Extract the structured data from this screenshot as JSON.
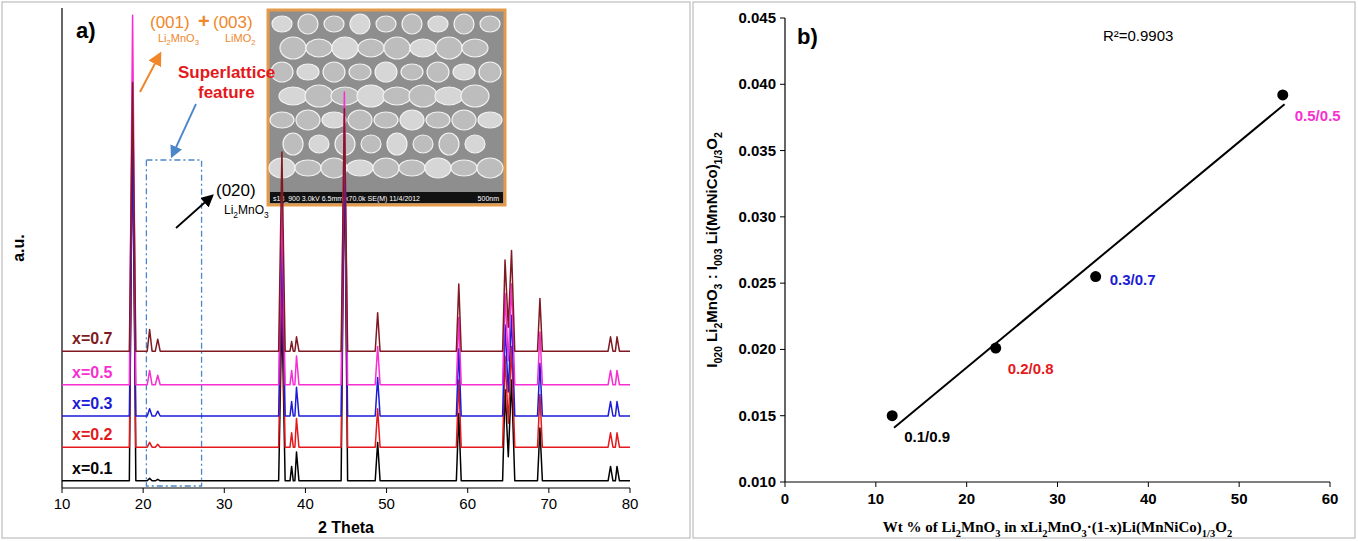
{
  "chart_data": [
    {
      "type": "line",
      "panel_label": "a)",
      "x_label": "2 Theta",
      "y_label": "a.u.",
      "xlim": [
        10,
        80
      ],
      "xticks": [
        10,
        20,
        30,
        40,
        50,
        60,
        70,
        80
      ],
      "ylim": [
        0,
        100
      ],
      "tick_labels": "x",
      "x": [
        10,
        18.3,
        18.7,
        19.1,
        20.5,
        20.8,
        21.1,
        21.5,
        21.8,
        22.1,
        36.7,
        37.1,
        37.5,
        38.1,
        38.3,
        38.5,
        38.7,
        38.9,
        39.2,
        44.4,
        44.8,
        45.2,
        48.6,
        48.9,
        49.2,
        58.6,
        58.9,
        59.2,
        64.3,
        64.6,
        65.0,
        65.4,
        65.8,
        68.6,
        68.9,
        69.2,
        77.3,
        77.6,
        77.9,
        78.2,
        78.4,
        78.7,
        80
      ],
      "series": [
        {
          "name": "x=0.1",
          "color": "#000000",
          "values": [
            1.5,
            1.5,
            81,
            1.5,
            1.5,
            2,
            1.5,
            1.5,
            1.8,
            1.5,
            1.5,
            37,
            1.5,
            1.5,
            4.5,
            1.5,
            1.5,
            7.5,
            1.5,
            1.5,
            70,
            1.5,
            1.5,
            9.5,
            1.5,
            1.5,
            15.5,
            1.5,
            1.5,
            20.5,
            6.5,
            22.5,
            1.5,
            1.5,
            12.5,
            1.5,
            1.5,
            4.5,
            1.5,
            1.5,
            4.5,
            1.5,
            1.5
          ]
        },
        {
          "name": "x=0.2",
          "color": "#e3191c",
          "values": [
            8.5,
            8.5,
            75,
            8.5,
            8.5,
            9.5,
            8.5,
            8.5,
            9.1,
            8.5,
            8.5,
            45,
            8.5,
            8.5,
            11.5,
            8.5,
            8.5,
            14.5,
            8.5,
            8.5,
            75,
            8.5,
            8.5,
            16.5,
            8.5,
            8.5,
            22.5,
            8.5,
            8.5,
            27.5,
            13.5,
            29.5,
            8.5,
            8.5,
            19.5,
            8.5,
            8.5,
            11.5,
            8.5,
            8.5,
            11.5,
            8.5,
            8.5
          ]
        },
        {
          "name": "x=0.3",
          "color": "#1c1cd6",
          "values": [
            15,
            15,
            72,
            15,
            15,
            16.5,
            15,
            15,
            16,
            15,
            15,
            52,
            15,
            15,
            18,
            15,
            15,
            21,
            15,
            15,
            72,
            15,
            15,
            23,
            15,
            15,
            29,
            15,
            15,
            34,
            20,
            36,
            15,
            15,
            26,
            15,
            15,
            18,
            15,
            15,
            18,
            15,
            15
          ]
        },
        {
          "name": "x=0.5",
          "color": "#f72fd0",
          "values": [
            21.5,
            21.5,
            98.5,
            21.5,
            21.5,
            24.5,
            21.5,
            21.5,
            23.5,
            21.5,
            21.5,
            60,
            21.5,
            21.5,
            24.5,
            21.5,
            21.5,
            27.5,
            21.5,
            21.5,
            82.5,
            21.5,
            21.5,
            29.5,
            21.5,
            21.5,
            35.5,
            21.5,
            21.5,
            40.5,
            26.5,
            42.5,
            21.5,
            21.5,
            32.5,
            21.5,
            21.5,
            24.5,
            21.5,
            21.5,
            24.5,
            21.5,
            21.5
          ]
        },
        {
          "name": "x=0.7",
          "color": "#7f1a22",
          "values": [
            28.5,
            28.5,
            84.5,
            28.5,
            28.5,
            33,
            28.5,
            28.5,
            31,
            28.5,
            28.5,
            70,
            28.5,
            28.5,
            30.5,
            28.5,
            28.5,
            31.5,
            28.5,
            28.5,
            79,
            28.5,
            28.5,
            36.5,
            28.5,
            28.5,
            42.5,
            28.5,
            28.5,
            47.5,
            33.5,
            49.5,
            28.5,
            28.5,
            39.5,
            28.5,
            28.5,
            31.5,
            28.5,
            28.5,
            31.5,
            28.5,
            28.5
          ]
        }
      ],
      "annotations": [
        "(001)",
        "Li2MnO3",
        "+",
        "(003)",
        "LiMO2",
        "Superlattice feature",
        "(020)",
        "Li2MnO3"
      ],
      "inset": {
        "caption": "s18_900 3.0kV 6.5mm x70.0k SE(M) 11/4/2012",
        "scale_label": "500nm"
      }
    },
    {
      "type": "scatter",
      "panel_label": "b)",
      "x_label": "Wt % of Li2MnO3 in xLi2MnO3·(1-x)Li(MnNiCo)1/3O2",
      "y_label": "I020 Li2MnO3 : I003 Li(MnNiCo)1/3O2",
      "xlim": [
        0,
        60
      ],
      "xticks": [
        0,
        10,
        20,
        30,
        40,
        50,
        60
      ],
      "ylim": [
        0.01,
        0.045
      ],
      "yticks": [
        {
          "value": 0.01,
          "label": "0.010"
        },
        0.015,
        {
          "value": 0.02,
          "label": "0.020"
        },
        0.025,
        {
          "value": 0.03,
          "label": "0.030"
        },
        0.035,
        {
          "value": 0.04,
          "label": "0.040"
        },
        0.045
      ],
      "series": [
        {
          "type": "scatter",
          "marker": "circle",
          "color": "#000000",
          "x": [
            11.8,
            23.2,
            34.2,
            54.8
          ],
          "values": [
            0.015,
            0.0201,
            0.0255,
            0.0392
          ],
          "point_labels": [
            "0.1/0.9",
            "0.2/0.8",
            "0.3/0.7",
            "0.5/0.5"
          ],
          "label_colors": [
            "#000000",
            "#e3191c",
            "#1c1cd6",
            "#f72fd0"
          ]
        },
        {
          "type": "line",
          "line_style": "solid",
          "color": "#000000",
          "x": [
            12,
            55
          ],
          "values": [
            0.0141,
            0.0385
          ]
        }
      ],
      "annotations": [
        "R²=0.9903"
      ]
    }
  ]
}
